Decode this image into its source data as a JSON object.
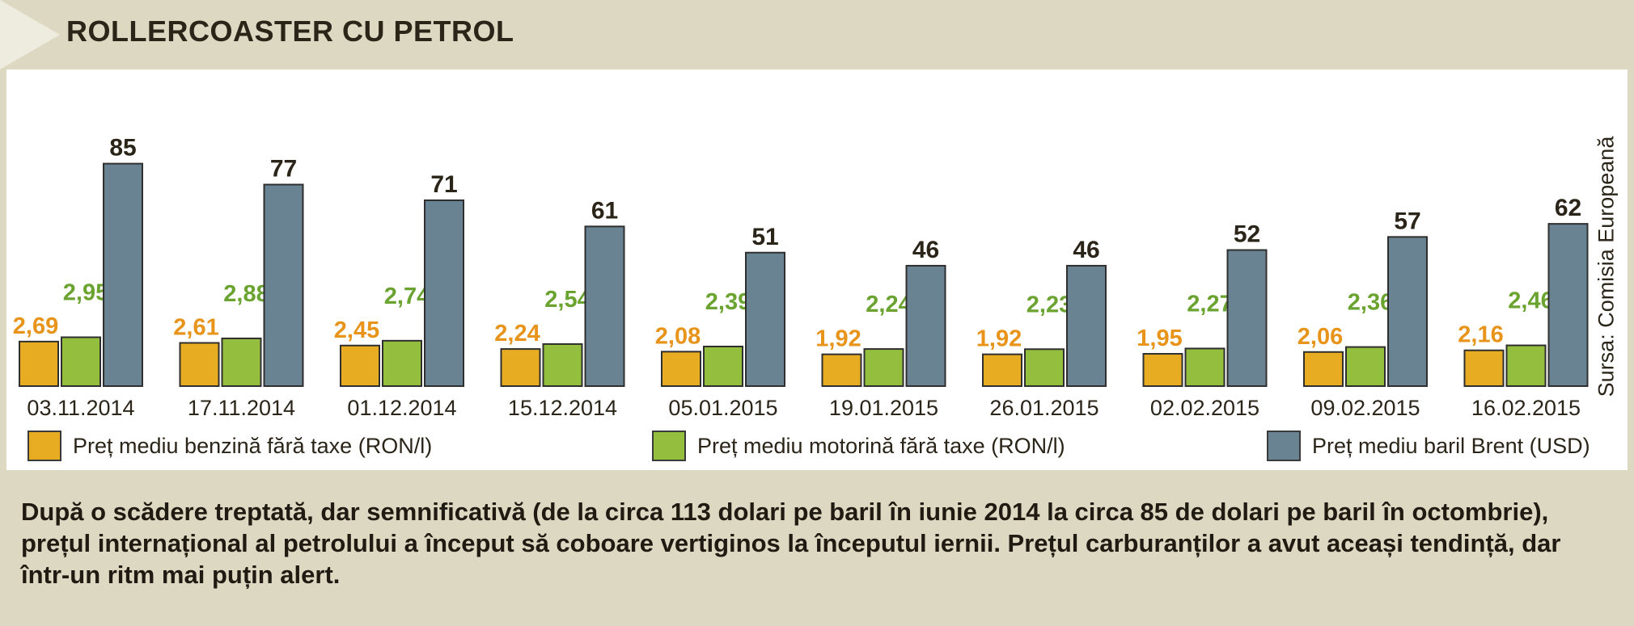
{
  "header": {
    "title": "ROLLERCOASTER CU PETROL"
  },
  "chart_data": {
    "type": "bar",
    "categories": [
      "03.11.2014",
      "17.11.2014",
      "01.12.2014",
      "15.12.2014",
      "05.01.2015",
      "19.01.2015",
      "26.01.2015",
      "02.02.2015",
      "09.02.2015",
      "16.02.2015"
    ],
    "series": [
      {
        "name": "Preț mediu benzină fără taxe (RON/l)",
        "values": [
          2.69,
          2.61,
          2.45,
          2.24,
          2.08,
          1.92,
          1.92,
          1.95,
          2.06,
          2.16
        ],
        "labels": [
          "2,69",
          "2,61",
          "2,45",
          "2,24",
          "2,08",
          "1,92",
          "1,92",
          "1,95",
          "2,06",
          "2,16"
        ],
        "color": "#e8ac22",
        "label_color": "#e8941a"
      },
      {
        "name": "Preț mediu motorină fără taxe (RON/l)",
        "values": [
          2.95,
          2.88,
          2.74,
          2.54,
          2.39,
          2.24,
          2.23,
          2.27,
          2.36,
          2.46
        ],
        "labels": [
          "2,95",
          "2,88",
          "2,74",
          "2,54",
          "2,39",
          "2,24",
          "2,23",
          "2,27",
          "2,36",
          "2,46"
        ],
        "color": "#94be3e",
        "label_color": "#6aa330"
      },
      {
        "name": "Preț mediu baril Brent (USD)",
        "values": [
          85,
          77,
          71,
          61,
          51,
          46,
          46,
          52,
          57,
          62
        ],
        "labels": [
          "85",
          "77",
          "71",
          "61",
          "51",
          "46",
          "46",
          "52",
          "57",
          "62"
        ],
        "color": "#6a8393",
        "label_color": "#2b2418"
      }
    ],
    "source": "Sursa: Comisia Europeană",
    "legend_position": "bottom",
    "grid": false
  },
  "caption": "După o scădere treptată, dar semnificativă (de la circa 113 dolari pe baril în iunie 2014 la circa 85 de dolari pe baril în octombrie), prețul internațional al petrolului a început să coboare vertiginos la începutul iernii. Prețul carburanților a avut aceași tendință, dar într-un ritm mai puțin alert."
}
